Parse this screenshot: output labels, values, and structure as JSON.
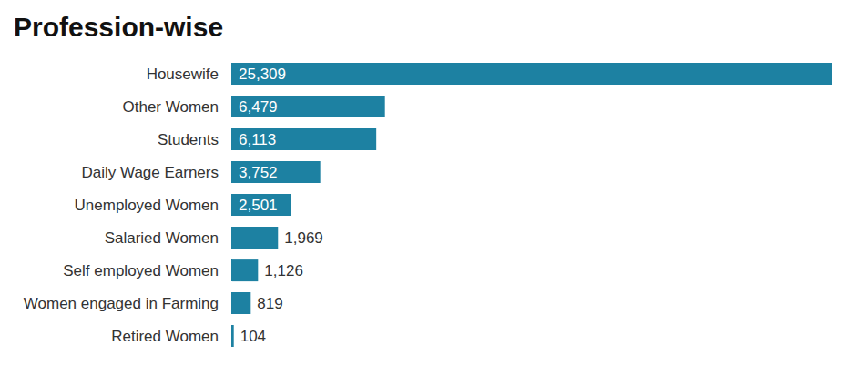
{
  "chart_data": {
    "type": "bar",
    "title": "Profession-wise",
    "orientation": "horizontal",
    "categories": [
      "Housewife",
      "Other Women",
      "Students",
      "Daily Wage Earners",
      "Unemployed Women",
      "Salaried Women",
      "Self employed Women",
      "Women engaged in Farming",
      "Retired Women"
    ],
    "values": [
      25309,
      6479,
      6113,
      3752,
      2501,
      1969,
      1126,
      819,
      104
    ],
    "value_labels": [
      "25,309",
      "6,479",
      "6,113",
      "3,752",
      "2,501",
      "1,969",
      "1,126",
      "819",
      "104"
    ],
    "color": "#1d81a2",
    "xlim": [
      0,
      25309
    ],
    "data_labels": true,
    "tick_labels": "y",
    "grid": false
  }
}
